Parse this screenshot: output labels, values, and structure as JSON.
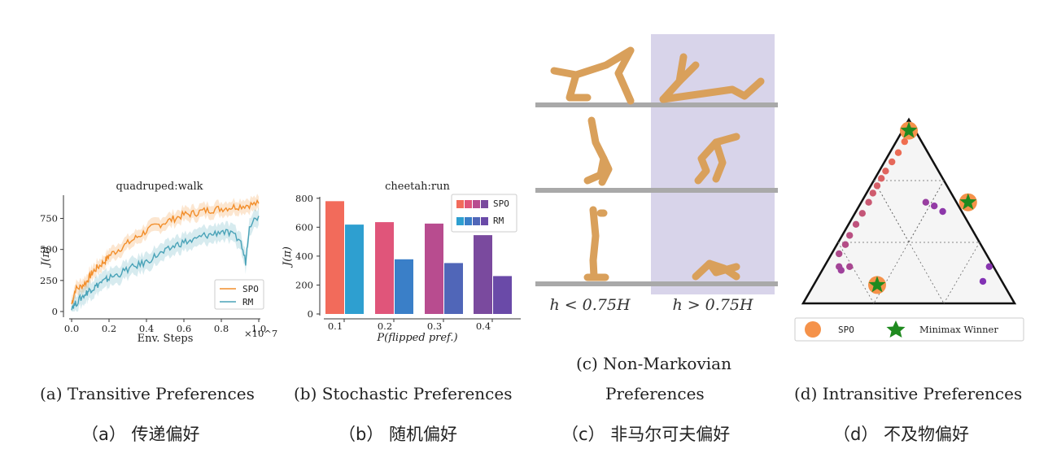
{
  "chart_data": [
    {
      "type": "line",
      "title": "quadruped:walk",
      "xlabel": "Env. Steps",
      "ylabel": "J(π)",
      "x_multiplier_label": "×10^7",
      "xticks": [
        "0.0",
        "0.2",
        "0.4",
        "0.6",
        "0.8",
        "1.0"
      ],
      "yticks": [
        "0",
        "250",
        "500",
        "750"
      ],
      "xlim": [
        0,
        1.0
      ],
      "ylim": [
        0,
        950
      ],
      "legend_position": "lower-right",
      "series": [
        {
          "name": "SPO",
          "color": "#f28e2b",
          "x": [
            0,
            0.02,
            0.05,
            0.08,
            0.1,
            0.12,
            0.15,
            0.18,
            0.2,
            0.25,
            0.3,
            0.35,
            0.4,
            0.45,
            0.5,
            0.55,
            0.6,
            0.65,
            0.7,
            0.75,
            0.8,
            0.85,
            0.9,
            0.95,
            1.0
          ],
          "y": [
            60,
            180,
            200,
            240,
            290,
            330,
            370,
            410,
            450,
            500,
            550,
            600,
            650,
            690,
            720,
            750,
            780,
            790,
            810,
            820,
            830,
            840,
            850,
            860,
            870
          ]
        },
        {
          "name": "RM",
          "color": "#4aa3b8",
          "x": [
            0,
            0.02,
            0.05,
            0.08,
            0.1,
            0.12,
            0.15,
            0.18,
            0.2,
            0.25,
            0.3,
            0.35,
            0.4,
            0.45,
            0.5,
            0.55,
            0.6,
            0.65,
            0.7,
            0.75,
            0.8,
            0.85,
            0.9,
            0.93,
            0.95,
            1.0
          ],
          "y": [
            40,
            60,
            110,
            150,
            180,
            190,
            230,
            250,
            270,
            300,
            340,
            370,
            400,
            450,
            480,
            530,
            560,
            570,
            610,
            620,
            650,
            620,
            580,
            400,
            700,
            770
          ]
        }
      ]
    },
    {
      "type": "bar",
      "title": "cheetah:run",
      "xlabel": "P(flipped pref.)",
      "ylabel": "J(π)",
      "categories": [
        "0.1",
        "0.2",
        "0.3",
        "0.4"
      ],
      "yticks": [
        "0",
        "200",
        "400",
        "600",
        "800"
      ],
      "ylim": [
        0,
        810
      ],
      "legend_position": "top-right",
      "series": [
        {
          "name": "SPO",
          "values": [
            780,
            635,
            625,
            545
          ],
          "colors": [
            "#f26b5b",
            "#e0557a",
            "#b84c8f",
            "#7a4a9e"
          ]
        },
        {
          "name": "RM",
          "values": [
            618,
            378,
            352,
            262
          ],
          "colors": [
            "#2e9fd0",
            "#3a7fc8",
            "#5066b8",
            "#6a4aa8"
          ]
        }
      ]
    },
    {
      "type": "scatter",
      "legend": [
        {
          "name": "SPO",
          "marker": "circle",
          "color": "#f5924a"
        },
        {
          "name": "Minimax Winner",
          "marker": "star",
          "color": "#1f8a1f"
        }
      ],
      "spo_points": [
        [
          0.5,
          0.94
        ],
        [
          0.78,
          0.55
        ],
        [
          0.35,
          0.1
        ]
      ],
      "minimax_points": [
        [
          0.5,
          0.94
        ],
        [
          0.78,
          0.55
        ],
        [
          0.35,
          0.1
        ]
      ],
      "trajectory_points": [
        [
          0.48,
          0.88
        ],
        [
          0.45,
          0.82
        ],
        [
          0.42,
          0.77
        ],
        [
          0.39,
          0.72
        ],
        [
          0.37,
          0.68
        ],
        [
          0.35,
          0.64
        ],
        [
          0.33,
          0.6
        ],
        [
          0.31,
          0.55
        ],
        [
          0.28,
          0.49
        ],
        [
          0.25,
          0.43
        ],
        [
          0.22,
          0.37
        ],
        [
          0.2,
          0.32
        ],
        [
          0.17,
          0.27
        ],
        [
          0.22,
          0.2
        ],
        [
          0.17,
          0.2
        ],
        [
          0.18,
          0.18
        ],
        [
          0.58,
          0.55
        ],
        [
          0.62,
          0.53
        ],
        [
          0.66,
          0.5
        ],
        [
          0.88,
          0.2
        ],
        [
          0.85,
          0.12
        ]
      ]
    }
  ],
  "panel_c": {
    "label_left": "h < 0.75H",
    "label_right": "h > 0.75H",
    "shade_color": "#d8d4ea"
  },
  "captions": {
    "a_en": "(a) Transitive Preferences",
    "b_en": "(b) Stochastic Preferences",
    "c_en_line1": "(c) Non-Markovian",
    "c_en_line2": "Preferences",
    "d_en": "(d) Intransitive Preferences",
    "a_zh": "（a） 传递偏好",
    "b_zh": "（b） 随机偏好",
    "c_zh": "（c） 非马尔可夫偏好",
    "d_zh": "（d） 不及物偏好"
  }
}
